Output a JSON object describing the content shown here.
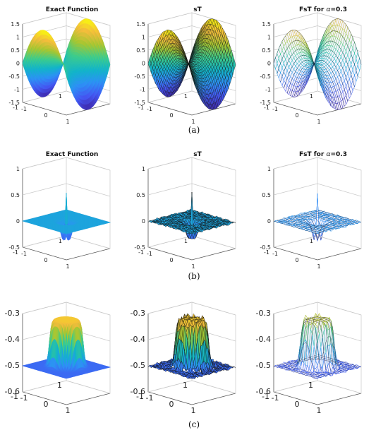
{
  "figure": {
    "rows": [
      {
        "id": "a",
        "caption": "(a)",
        "kind": "saddle",
        "z_ticks": [
          "1.5",
          "1",
          "0.5",
          "0",
          "-0.5",
          "-1",
          "-1.5"
        ],
        "x_ticks": [
          "-1",
          "0",
          "1"
        ],
        "y_ticks": [
          "1",
          "-1"
        ],
        "panels": [
          {
            "title": "Exact Function",
            "style": "surface"
          },
          {
            "title": "sT",
            "style": "mesh"
          },
          {
            "title_prefix": "FsT for ",
            "title_symbol": "α",
            "title_suffix": "=0.3",
            "style": "sparse"
          }
        ]
      },
      {
        "id": "b",
        "caption": "(b)",
        "kind": "spike",
        "z_ticks": [
          "1",
          "0.5",
          "0",
          "-0.5"
        ],
        "x_ticks": [
          "-1",
          "0",
          "1"
        ],
        "y_ticks": [
          "1",
          "-1"
        ],
        "panels": [
          {
            "title": "Exact Function",
            "style": "surface"
          },
          {
            "title": "sT",
            "style": "mesh"
          },
          {
            "title_prefix": "FsT for ",
            "title_symbol": "α",
            "title_suffix": "=0.3",
            "style": "sparse"
          }
        ]
      },
      {
        "id": "c",
        "caption": "(c)",
        "kind": "plateau",
        "z_ticks": [
          "-0.3",
          "-0.4",
          "-0.5",
          "-0.6"
        ],
        "x_ticks": [
          "-1",
          "0",
          "1"
        ],
        "y_ticks": [
          "1",
          "-1"
        ],
        "panels": [
          {
            "title": "",
            "style": "surface"
          },
          {
            "title": "",
            "style": "mesh"
          },
          {
            "title": "",
            "style": "sparse"
          }
        ]
      }
    ],
    "colormap": [
      "#3e26a8",
      "#4457f2",
      "#2d91f5",
      "#12b4c9",
      "#3dcc8c",
      "#a6c631",
      "#f3bc3c",
      "#f8fa0d"
    ]
  }
}
